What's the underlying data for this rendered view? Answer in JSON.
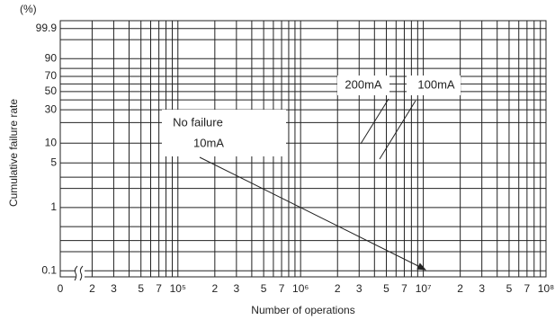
{
  "chart_data": {
    "type": "weibull",
    "y_unit": "(%)",
    "xlabel": "Number of operations",
    "ylabel": "Cumulative failure rate",
    "x_origin_label": "0",
    "xscale": "log",
    "yscale": "weibull",
    "xlim": [
      11000,
      100000000
    ],
    "ylim": [
      0.08,
      99.99
    ],
    "xticks": [
      {
        "value": 20000,
        "label": "2"
      },
      {
        "value": 30000,
        "label": "3"
      },
      {
        "value": 50000,
        "label": "5"
      },
      {
        "value": 70000,
        "label": "7"
      },
      {
        "value": 100000,
        "label": "10⁵"
      },
      {
        "value": 200000,
        "label": "2"
      },
      {
        "value": 300000,
        "label": "3"
      },
      {
        "value": 500000,
        "label": "5"
      },
      {
        "value": 700000,
        "label": "7"
      },
      {
        "value": 1000000,
        "label": "10⁶"
      },
      {
        "value": 2000000,
        "label": "2"
      },
      {
        "value": 3000000,
        "label": "3"
      },
      {
        "value": 5000000,
        "label": "5"
      },
      {
        "value": 7000000,
        "label": "7"
      },
      {
        "value": 10000000,
        "label": "10⁷"
      },
      {
        "value": 20000000,
        "label": "2"
      },
      {
        "value": 30000000,
        "label": "3"
      },
      {
        "value": 50000000,
        "label": "5"
      },
      {
        "value": 70000000,
        "label": "7"
      },
      {
        "value": 100000000,
        "label": "10⁸"
      }
    ],
    "x_minor_grid": [
      40000,
      60000,
      80000,
      90000,
      400000,
      600000,
      800000,
      900000,
      4000000,
      6000000,
      8000000,
      9000000,
      40000000,
      60000000,
      80000000,
      90000000
    ],
    "yticks": [
      0.1,
      1,
      5,
      10,
      30,
      50,
      70,
      90,
      99.9
    ],
    "y_minor_grid": [
      0.2,
      0.3,
      0.5,
      2,
      3,
      20,
      40,
      60,
      80,
      99
    ],
    "grid": true,
    "annotations": [
      "200mA",
      "100mA",
      "No failure",
      "10mA"
    ]
  }
}
